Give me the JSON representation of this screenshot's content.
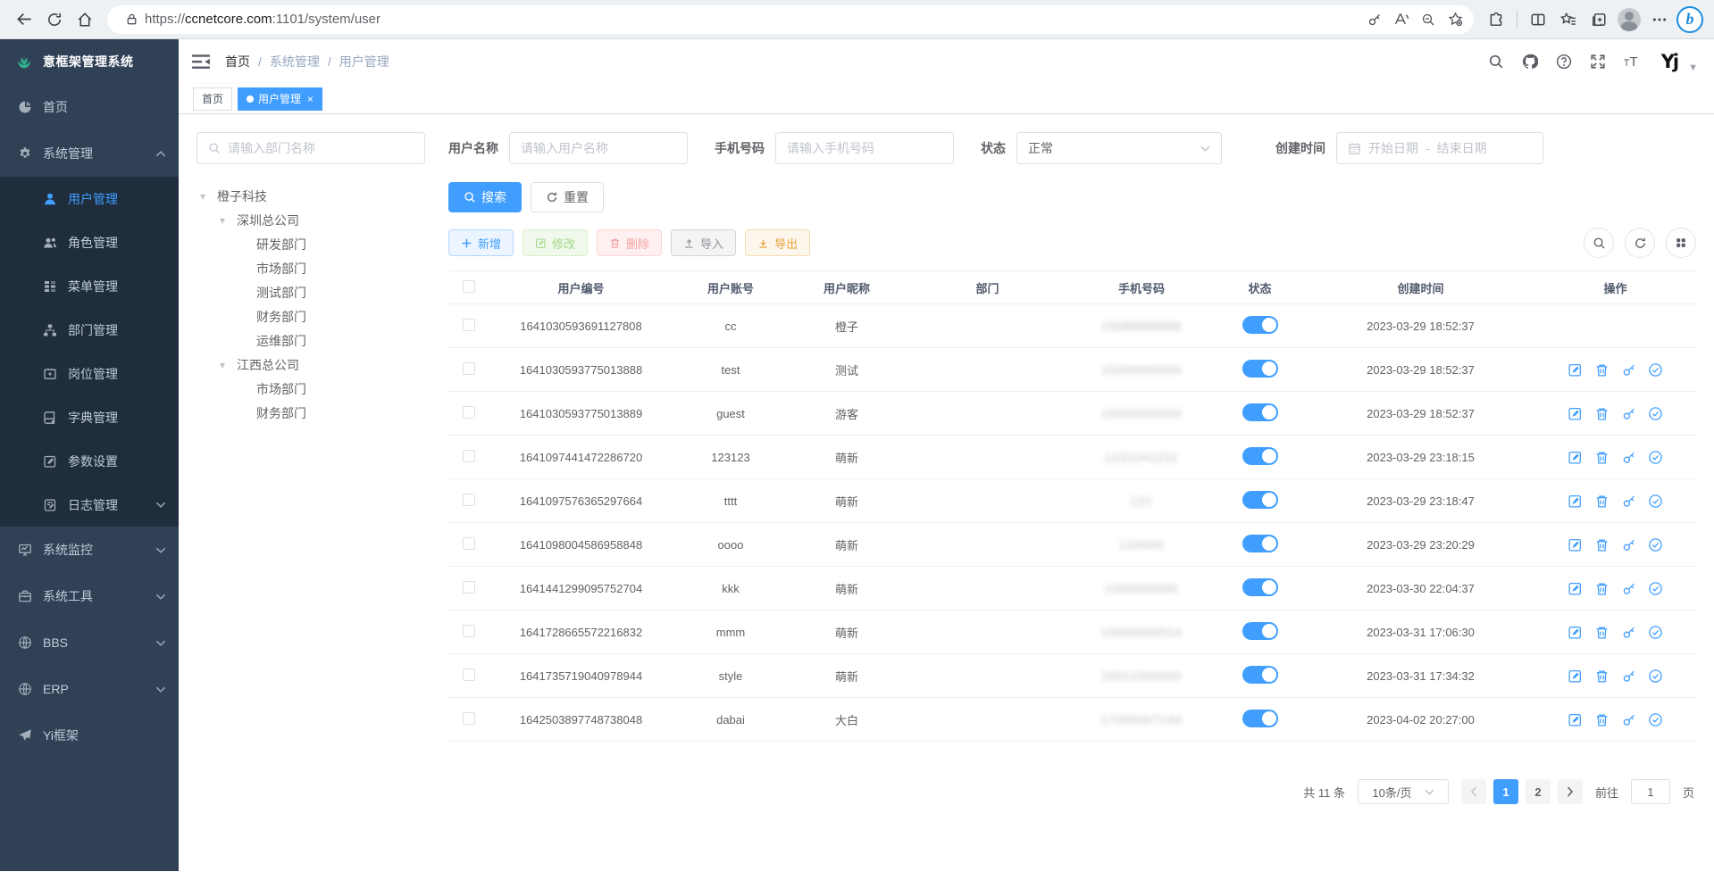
{
  "browser": {
    "url_scheme": "https://",
    "url_host": "ccnetcore.com",
    "url_path": ":1101/system/user"
  },
  "sidebar": {
    "logo_title": "意框架管理系统",
    "items": [
      {
        "key": "home",
        "label": "首页",
        "icon": "dashboard-icon"
      },
      {
        "key": "system-management",
        "label": "系统管理",
        "icon": "gear-icon",
        "expanded": true,
        "children": [
          {
            "key": "user-management",
            "label": "用户管理",
            "icon": "user-icon",
            "active": true
          },
          {
            "key": "role-management",
            "label": "角色管理",
            "icon": "peoples-icon"
          },
          {
            "key": "menu-management",
            "label": "菜单管理",
            "icon": "tree-table-icon"
          },
          {
            "key": "dept-management",
            "label": "部门管理",
            "icon": "tree-icon"
          },
          {
            "key": "post-management",
            "label": "岗位管理",
            "icon": "post-icon"
          },
          {
            "key": "dict-management",
            "label": "字典管理",
            "icon": "dict-icon"
          },
          {
            "key": "param-settings",
            "label": "参数设置",
            "icon": "edit-icon"
          },
          {
            "key": "log-management",
            "label": "日志管理",
            "icon": "log-icon",
            "has_children": true
          }
        ]
      },
      {
        "key": "system-monitor",
        "label": "系统监控",
        "icon": "monitor-icon",
        "has_children": true
      },
      {
        "key": "system-tools",
        "label": "系统工具",
        "icon": "tool-icon",
        "has_children": true
      },
      {
        "key": "bbs",
        "label": "BBS",
        "icon": "globe-icon",
        "has_children": true
      },
      {
        "key": "erp",
        "label": "ERP",
        "icon": "globe-icon",
        "has_children": true
      },
      {
        "key": "yi-framework",
        "label": "Yi框架",
        "icon": "guide-icon"
      }
    ]
  },
  "header": {
    "breadcrumb": [
      "首页",
      "系统管理",
      "用户管理"
    ],
    "logo_glyph": "Yj"
  },
  "tabs": [
    {
      "label": "首页",
      "active": false
    },
    {
      "label": "用户管理",
      "active": true,
      "closable": true
    }
  ],
  "tree": {
    "search_placeholder": "请输入部门名称",
    "nodes": [
      {
        "label": "橙子科技",
        "level": 0,
        "caret": true
      },
      {
        "label": "深圳总公司",
        "level": 1,
        "caret": true
      },
      {
        "label": "研发部门",
        "level": 2
      },
      {
        "label": "市场部门",
        "level": 2
      },
      {
        "label": "测试部门",
        "level": 2
      },
      {
        "label": "财务部门",
        "level": 2
      },
      {
        "label": "运维部门",
        "level": 2
      },
      {
        "label": "江西总公司",
        "level": 1,
        "caret": true
      },
      {
        "label": "市场部门",
        "level": 2
      },
      {
        "label": "财务部门",
        "level": 2
      }
    ]
  },
  "filters": {
    "username_label": "用户名称",
    "username_placeholder": "请输入用户名称",
    "phone_label": "手机号码",
    "phone_placeholder": "请输入手机号码",
    "status_label": "状态",
    "status_value": "正常",
    "created_label": "创建时间",
    "date_start_placeholder": "开始日期",
    "date_separator": "-",
    "date_end_placeholder": "结束日期",
    "search_label": "搜索",
    "reset_label": "重置"
  },
  "toolbar": {
    "add_label": "新增",
    "edit_label": "修改",
    "delete_label": "删除",
    "import_label": "导入",
    "export_label": "导出"
  },
  "table": {
    "columns": [
      "用户编号",
      "用户账号",
      "用户昵称",
      "部门",
      "手机号码",
      "状态",
      "创建时间",
      "操作"
    ],
    "action_icons": [
      "edit",
      "delete",
      "reset-password",
      "assign-role"
    ],
    "rows": [
      {
        "id": "1641030593691127808",
        "account": "cc",
        "nickname": "橙子",
        "dept": "",
        "phone_masked": "15088888888",
        "status": true,
        "created": "2023-03-29 18:52:37",
        "actions": false
      },
      {
        "id": "1641030593775013888",
        "account": "test",
        "nickname": "测试",
        "dept": "",
        "phone_masked": "15000000000",
        "status": true,
        "created": "2023-03-29 18:52:37",
        "actions": true
      },
      {
        "id": "1641030593775013889",
        "account": "guest",
        "nickname": "游客",
        "dept": "",
        "phone_masked": "15000000000",
        "status": true,
        "created": "2023-03-29 18:52:37",
        "actions": true
      },
      {
        "id": "1641097441472286720",
        "account": "123123",
        "nickname": "萌新",
        "dept": "",
        "phone_masked": "1231241231",
        "status": true,
        "created": "2023-03-29 23:18:15",
        "actions": true
      },
      {
        "id": "1641097576365297664",
        "account": "tttt",
        "nickname": "萌新",
        "dept": "",
        "phone_masked": "121",
        "status": true,
        "created": "2023-03-29 23:18:47",
        "actions": true
      },
      {
        "id": "1641098004586958848",
        "account": "oooo",
        "nickname": "萌新",
        "dept": "",
        "phone_masked": "120400",
        "status": true,
        "created": "2023-03-29 23:20:29",
        "actions": true
      },
      {
        "id": "1641441299095752704",
        "account": "kkk",
        "nickname": "萌新",
        "dept": "",
        "phone_masked": "1500000000",
        "status": true,
        "created": "2023-03-30 22:04:37",
        "actions": true
      },
      {
        "id": "1641728665572216832",
        "account": "mmm",
        "nickname": "萌新",
        "dept": "",
        "phone_masked": "15040000014",
        "status": true,
        "created": "2023-03-31 17:06:30",
        "actions": true
      },
      {
        "id": "1641735719040978944",
        "account": "style",
        "nickname": "萌新",
        "dept": "",
        "phone_masked": "15012300000",
        "status": true,
        "created": "2023-03-31 17:34:32",
        "actions": true
      },
      {
        "id": "1642503897748738048",
        "account": "dabai",
        "nickname": "大白",
        "dept": "",
        "phone_masked": "17005007140",
        "status": true,
        "created": "2023-04-02 20:27:00",
        "actions": true
      }
    ]
  },
  "pagination": {
    "total_label": "共 11 条",
    "page_size_label": "10条/页",
    "pages": [
      "1",
      "2"
    ],
    "active_page": "1",
    "goto_label": "前往",
    "goto_value": "1",
    "unit_label": "页"
  }
}
